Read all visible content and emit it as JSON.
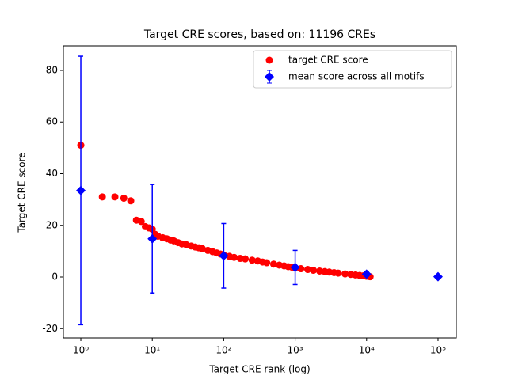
{
  "chart_data": {
    "type": "scatter",
    "title": "Target CRE scores, based on: 11196 CREs",
    "xlabel": "Target CRE rank (log)",
    "ylabel": "Target CRE score",
    "xscale": "log",
    "xlim": [
      0.57,
      180000
    ],
    "ylim": [
      -23.6,
      89.5
    ],
    "xticks": [
      {
        "value": 1,
        "label": "10⁰"
      },
      {
        "value": 10,
        "label": "10¹"
      },
      {
        "value": 100,
        "label": "10²"
      },
      {
        "value": 1000,
        "label": "10³"
      },
      {
        "value": 10000,
        "label": "10⁴"
      },
      {
        "value": 100000,
        "label": "10⁵"
      }
    ],
    "yticks": [
      -20,
      0,
      20,
      40,
      60,
      80
    ],
    "legend": "upper right",
    "series": [
      {
        "name": "target CRE score",
        "color": "#ff0000",
        "marker": "circle",
        "x": [
          1,
          2,
          3,
          4,
          5,
          6,
          7,
          8,
          9,
          10,
          11,
          12,
          14,
          16,
          18,
          20,
          23,
          26,
          30,
          35,
          40,
          45,
          50,
          60,
          70,
          80,
          90,
          100,
          120,
          140,
          170,
          200,
          250,
          300,
          350,
          400,
          500,
          600,
          700,
          800,
          900,
          1000,
          1200,
          1500,
          1800,
          2200,
          2600,
          3000,
          3500,
          4000,
          5000,
          6000,
          7000,
          8000,
          9000,
          10000,
          11196
        ],
        "values": [
          51,
          31,
          31,
          30.5,
          29.5,
          22,
          21.5,
          19.5,
          19,
          18.5,
          16.5,
          15.8,
          15.2,
          14.8,
          14.3,
          14,
          13.3,
          12.8,
          12.5,
          12,
          11.6,
          11.3,
          11,
          10.3,
          9.8,
          9.3,
          8.9,
          8.5,
          8,
          7.6,
          7.2,
          7,
          6.5,
          6.2,
          5.8,
          5.5,
          5,
          4.6,
          4.3,
          4,
          3.8,
          3.5,
          3.2,
          2.9,
          2.6,
          2.3,
          2.1,
          1.9,
          1.7,
          1.5,
          1.2,
          1,
          0.8,
          0.6,
          0.45,
          0.3,
          0.1
        ]
      },
      {
        "name": "mean score across all motifs",
        "color": "#0000ff",
        "marker": "diamond",
        "x": [
          1,
          10,
          100,
          1000,
          10000,
          100000
        ],
        "values": [
          33.5,
          14.8,
          8.2,
          3.7,
          1.1,
          0.1
        ],
        "errors": [
          52,
          21,
          12.5,
          6.6,
          0.8,
          0
        ]
      }
    ]
  }
}
